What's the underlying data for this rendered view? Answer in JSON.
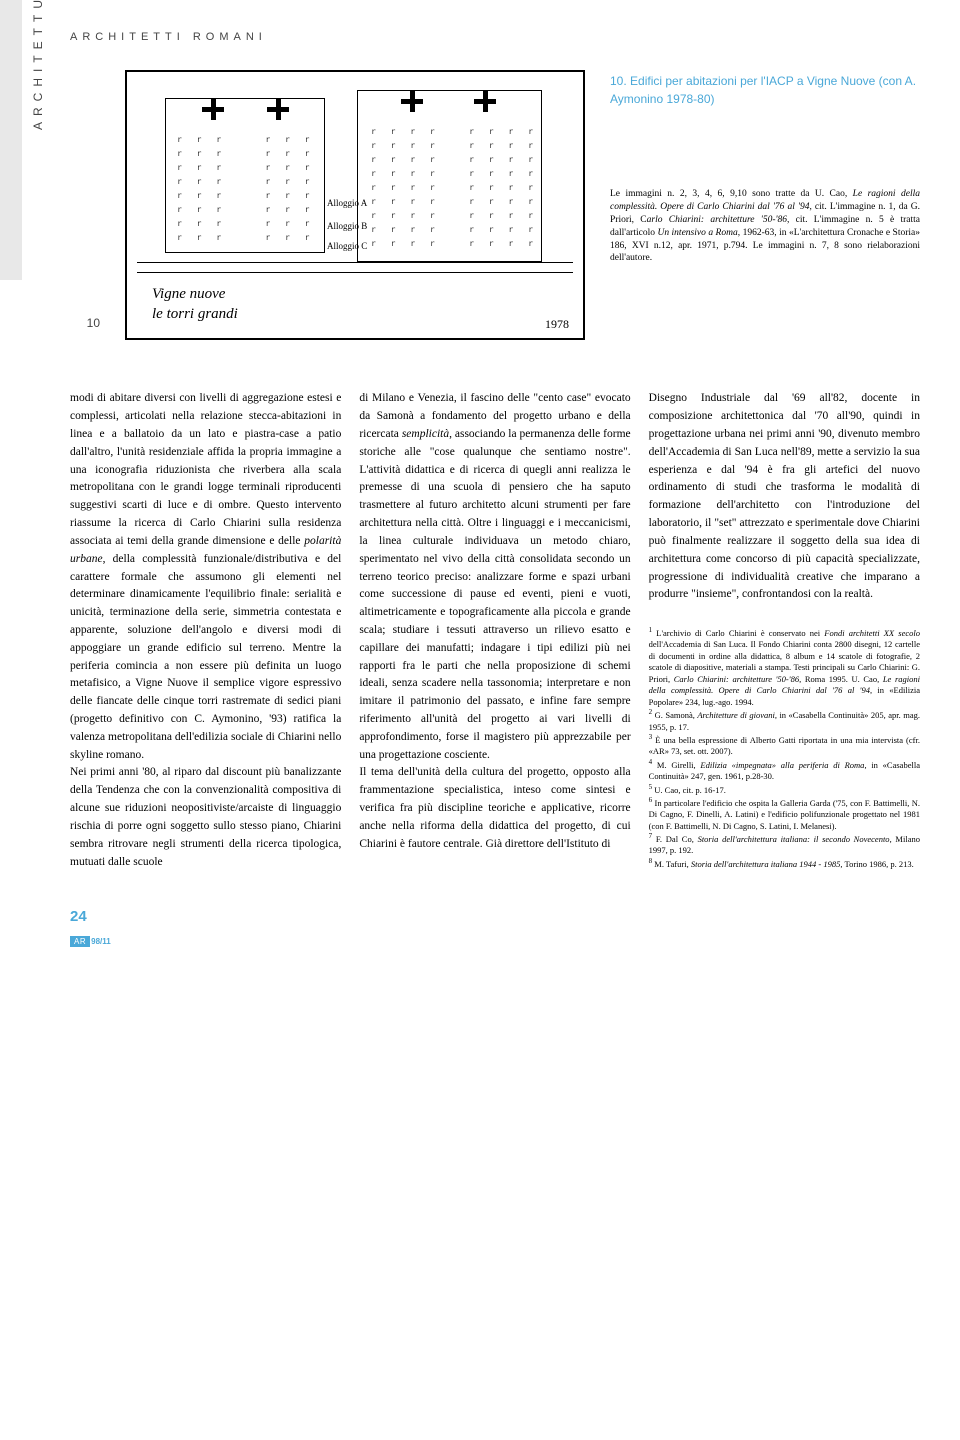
{
  "sideLabel": "ARCHITETTURA",
  "headerTitle": "ARCHITETTI ROMANI",
  "pageNumTop": "10",
  "sketch": {
    "hand1": "Vigne nuove",
    "hand2": "le torri grandi",
    "year": "1978",
    "annotA": "Alloggio A",
    "annotB": "Alloggio B",
    "annotC": "Alloggio C"
  },
  "captionTitle": "10. Edifici per abitazioni per l'IACP a Vigne Nuove (con A. Aymonino 1978-80)",
  "imgCredits": "Le immagini n. 2, 3, 4, 6, 9,10 sono tratte da U. Cao, <em>Le ragioni della complessità. Opere di Carlo Chiarini dal '76 al '94</em>, cit. L'immagine n. 1, da G. Priori, C<em>arlo Chiarini: architetture '50-'86</em>, cit. L'immagine n. 5 è tratta dall'articolo <em>Un intensivo a Roma</em>, 1962-63, in «L'architettura Cronache e Storia» 186, XVI n.12, apr. 1971, p.794. Le immagini n. 7, 8 sono rielaborazioni dell'autore.",
  "col1": "modi di abitare diversi con livelli di aggregazione estesi e complessi, articolati nella relazione stecca-abitazioni in linea e a ballatoio da un lato e piastra-case a patio dall'altro, l'unità residenziale affida la propria immagine a una iconografia riduzionista che riverbera alla scala metropolitana con le grandi logge terminali riproducenti suggestivi scarti di luce e di ombre. Questo intervento riassume la ricerca di Carlo Chiarini sulla residenza associata ai temi della grande dimensione e delle <em>polarità urbane</em>, della complessità funzionale/distributiva e del carattere formale che assumono gli elementi nel determinare dinamicamente l'equilibrio finale: serialità e unicità, terminazione della serie, simmetria contestata e apparente, soluzione dell'angolo e diversi modi di appoggiare un grande edificio sul terreno. Mentre la periferia comincia a non essere più definita un luogo metafisico, a Vigne Nuove il semplice vigore espressivo delle fiancate delle cinque torri rastremate di sedici piani (progetto definitivo con C. Aymonino, '93) ratifica la valenza metropolitana dell'edilizia sociale di Chiarini nello skyline romano.<br>Nei primi anni '80, al riparo dal discount più banalizzante della Tendenza che con la convenzionalità compositiva di alcune sue riduzioni neopositiviste/arcaiste di linguaggio rischia di porre ogni soggetto sullo stesso piano, Chiarini sembra ritrovare negli strumenti della ricerca tipologica, mutuati dalle scuole",
  "col2": "di Milano e Venezia, il fascino delle \"cento case\" evocato da Samonà a fondamento del progetto urbano e della ricercata <em>semplicità</em>, associando la permanenza delle forme storiche alle \"cose qualunque che sentiamo nostre\". L'attività didattica e di ricerca di quegli anni realizza le premesse di una scuola di pensiero che ha saputo trasmettere al futuro architetto alcuni strumenti per fare architettura nella città. Oltre i linguaggi e i meccanicismi, la linea culturale individuava un metodo chiaro, sperimentato nel vivo della città consolidata secondo un terreno teorico preciso: analizzare forme e spazi urbani come successione di pause ed eventi, pieni e vuoti, altimetricamente e topograficamente alla piccola e grande scala; studiare i tessuti attraverso un rilievo esatto e capillare dei manufatti; indagare i tipi edilizi più nei rapporti fra le parti che nella proposizione di schemi ideali, senza scadere nella tassonomia; interpretare e non imitare il patrimonio del passato, e infine fare sempre riferimento all'unità del progetto ai vari livelli di approfondimento, forse il magistero più apprezzabile per una progettazione cosciente.<br>Il tema dell'unità della cultura del progetto, opposto alla frammentazione specialistica, inteso come sintesi e verifica fra più discipline teoriche e applicative, ricorre anche nella riforma della didattica del progetto, di cui Chiarini è fautore centrale. Già direttore dell'Istituto di",
  "col3": "Disegno Industriale dal '69 all'82, docente in composizione architettonica dal '70 all'90, quindi in progettazione urbana nei primi anni '90, divenuto membro dell'Accademia di San Luca nell'89, mette a servizio la sua esperienza e dal '94 è fra gli artefici del nuovo ordinamento di studi che trasforma le modalità di formazione dell'architetto con l'introduzione del laboratorio, il \"set\" attrezzato e sperimentale dove Chiarini può finalmente realizzare il soggetto della sua idea di architettura come concorso di più capacità specializzate, progressione di individualità creative che imparano a produrre \"insieme\", confrontandosi con la realtà.",
  "notes": "<sup>1</sup> L'archivio di Carlo Chiarini è conservato nei <em>Fondi architetti XX secolo</em> dell'Accademia di San Luca. Il Fondo Chiarini conta 2800 disegni, 12 cartelle di documenti in ordine alla didattica, 8 album e 14 scatole di fotografie, 2 scatole di diapositive, materiali a stampa. Testi principali su Carlo Chiarini: G. Priori, <em>Carlo Chiarini: architetture '50-'86</em>, Roma 1995. U. Cao, <em>Le ragioni della complessità. Opere di Carlo Chiarini dal '76 al '94</em>, in «Edilizia Popolare» 234, lug.-ago. 1994.<br><sup>2</sup> G. Samonà, <em>Architetture di giovani</em>, in «Casabella Continuità» 205, apr. mag. 1955, p. 17.<br><sup>3</sup> È una bella espressione di Alberto Gatti riportata in una mia intervista (cfr. «AR» 73, set. ott. 2007).<br><sup>4</sup> M. Girelli, <em>Edilizia «impegnata» alla periferia di Roma</em>, in «Casabella Continuità» 247, gen. 1961, p.28-30.<br><sup>5</sup> U. Cao, cit. p. 16-17.<br><sup>6</sup> In particolare l'edificio che ospita la Galleria Garda ('75, con F. Battimelli, N. Di Cagno, F. Dinelli, A. Latini) e l'edificio polifunzionale progettato nel 1981 (con F. Battimelli, N. Di Cagno, S. Latini, I. Melanesi).<br><sup>7</sup> F. Dal Co, <em>Storia dell'architettura italiana: il secondo Novecento</em>, Milano 1997, p. 192.<br><sup>8</sup> M. Tafuri, <em>Storia dell'architettura italiana 1944 - 1985</em>, Torino 1986, p. 213.",
  "footer": {
    "pageNum": "24",
    "badgeLeft": "AR",
    "badgeRight": "98/11"
  },
  "colors": {
    "accent": "#4aa8d8",
    "sideTab": "#e8e8e8",
    "text": "#000000",
    "muted": "#444444"
  }
}
